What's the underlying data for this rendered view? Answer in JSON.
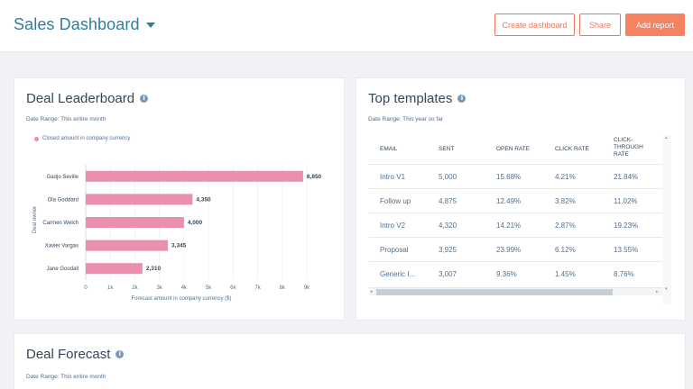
{
  "header": {
    "title": "Sales Dashboard",
    "create_label": "Create dashboard",
    "share_label": "Share",
    "add_label": "Add report"
  },
  "leaderboard": {
    "title": "Deal Leaderboard",
    "date_range": "Date Range: This entire month",
    "legend": "Closed amount in company currency",
    "info_icon": "info-icon",
    "chart_data": {
      "type": "bar",
      "orientation": "horizontal",
      "categories": [
        "Gadjo Seville",
        "Ola Goddard",
        "Carmen Welch",
        "Xavier Vargas",
        "Jane Goodall"
      ],
      "values": [
        8850,
        4350,
        4000,
        3345,
        2310
      ],
      "value_labels": [
        "8,850",
        "4,350",
        "4,000",
        "3,345",
        "2,310"
      ],
      "xlabel": "Forecast amount in company currency ($)",
      "ylabel": "Deal owner",
      "xlim": [
        0,
        9000
      ],
      "xticks": [
        "0",
        "1k",
        "2k",
        "3k",
        "4k",
        "5k",
        "6k",
        "7k",
        "8k",
        "9k"
      ],
      "series_color": "#ea90ad",
      "grid": true,
      "legend_position": "top-left"
    }
  },
  "templates": {
    "title": "Top templates",
    "date_range": "Date Range: This year so far",
    "columns": [
      "EMAIL",
      "SENT",
      "OPEN RATE",
      "CLICK RATE",
      "CLICK-\nTHROUGH\nRATE"
    ],
    "rows": [
      [
        "Intro V1",
        "5,000",
        "15.68%",
        "4.21%",
        "21.84%"
      ],
      [
        "Follow up",
        "4,875",
        "12.49%",
        "3.82%",
        "11.02%"
      ],
      [
        "Intro V2",
        "4,320",
        "14.21%",
        "2.87%",
        "19.23%"
      ],
      [
        "Proposal",
        "3,925",
        "23.99%",
        "6.12%",
        "13.55%"
      ],
      [
        "Generic I...",
        "3,007",
        "9.36%",
        "1.45%",
        "8.76%"
      ]
    ]
  },
  "forecast": {
    "title": "Deal Forecast",
    "date_range": "Date Range: This entire month"
  },
  "colors": {
    "brand_blue": "#2f7ea0",
    "accent_orange": "#f58362",
    "bar_pink": "#ea90ad"
  }
}
